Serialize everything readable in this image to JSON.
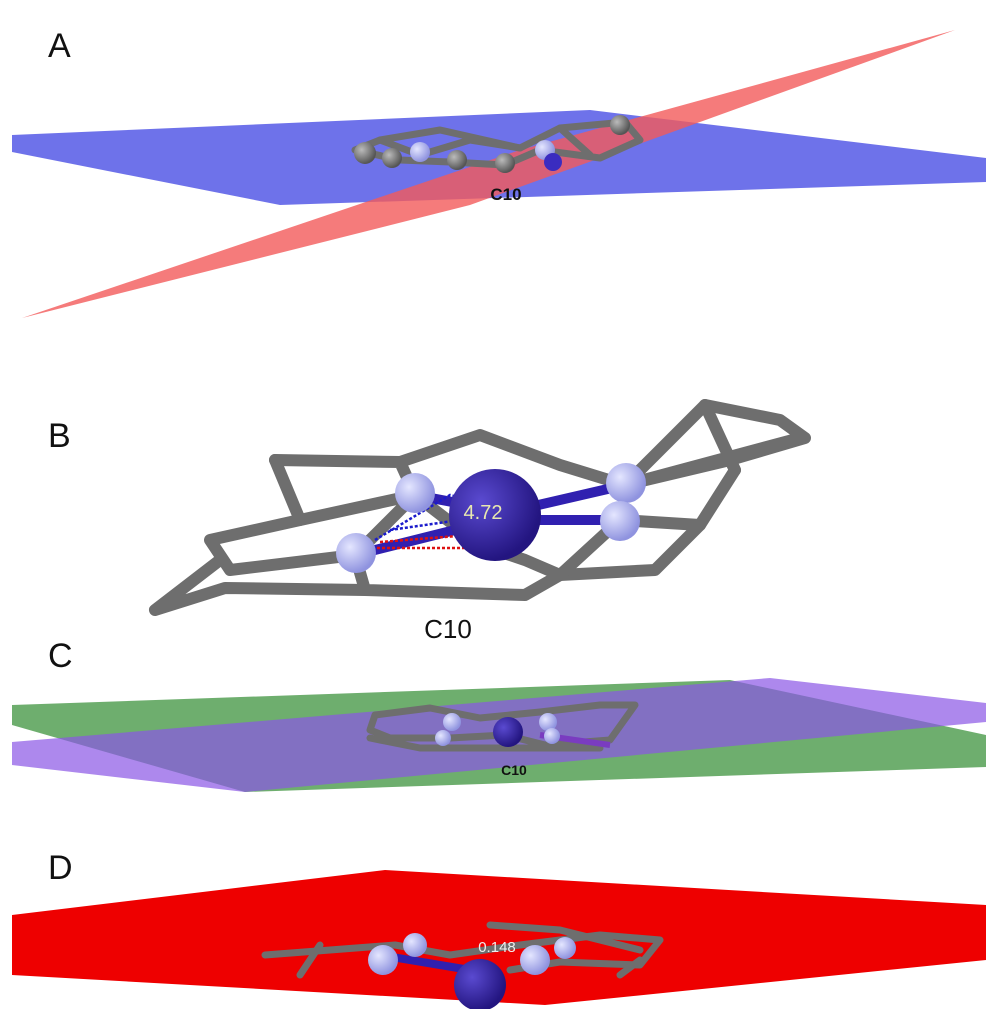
{
  "panels": [
    {
      "label": "A",
      "atom_label": "C10"
    },
    {
      "label": "B",
      "atom_label": "C10",
      "measurement": "4.72"
    },
    {
      "label": "C",
      "atom_label": "C10"
    },
    {
      "label": "D",
      "measurement": "0.148"
    }
  ]
}
